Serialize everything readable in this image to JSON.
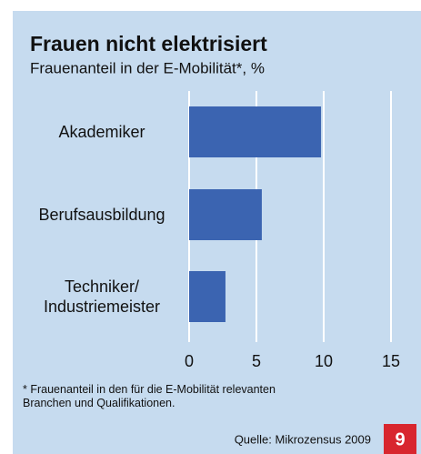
{
  "chart_data": {
    "type": "barh",
    "title": "Frauen nicht elektrisiert",
    "subtitle": "Frauenanteil in der E-Mobilität*, %",
    "categories": [
      "Akademiker",
      "Berufsausbildung",
      "Techniker/\nIndustriemeister"
    ],
    "values": [
      9.8,
      5.4,
      2.7
    ],
    "color": "#3b64b1",
    "xlim": [
      0,
      15
    ],
    "xticks": [
      0,
      5,
      10,
      15
    ],
    "grid": true,
    "footnote": "* Frauenanteil in den für die E-Mobilität relevanten\nBranchen und Qualifikationen.",
    "source": "Quelle: Mikrozensus 2009",
    "page_number": "9"
  }
}
